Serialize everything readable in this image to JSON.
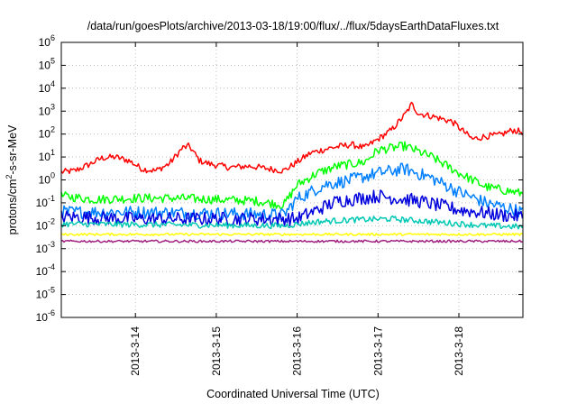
{
  "chart_data": {
    "type": "line",
    "title": "/data/run/goesPlots/archive/2013-03-18/19:00/flux/../flux/5daysEarthDataFluxes.txt",
    "xlabel": "Coordinated Universal Time (UTC)",
    "ylabel_parts": [
      "protons/cm",
      "2",
      "-s-sr-MeV"
    ],
    "y_scale": "log",
    "ylim": [
      1e-06,
      1000000.0
    ],
    "y_ticks": [
      {
        "base": "10",
        "exp": "6",
        "value": 1000000.0
      },
      {
        "base": "10",
        "exp": "5",
        "value": 100000.0
      },
      {
        "base": "10",
        "exp": "4",
        "value": 10000.0
      },
      {
        "base": "10",
        "exp": "3",
        "value": 1000.0
      },
      {
        "base": "10",
        "exp": "2",
        "value": 100.0
      },
      {
        "base": "10",
        "exp": "1",
        "value": 10.0
      },
      {
        "base": "10",
        "exp": "0",
        "value": 1.0
      },
      {
        "base": "10",
        "exp": "-1",
        "value": 0.1
      },
      {
        "base": "10",
        "exp": "-2",
        "value": 0.01
      },
      {
        "base": "10",
        "exp": "-3",
        "value": 0.001
      },
      {
        "base": "10",
        "exp": "-4",
        "value": 0.0001
      },
      {
        "base": "10",
        "exp": "-5",
        "value": 1e-05
      },
      {
        "base": "10",
        "exp": "-6",
        "value": 1e-06
      }
    ],
    "xlim": [
      "2013-03-13 02:00",
      "2013-03-18 19:00"
    ],
    "x_ticks": [
      {
        "label": "2013-3-14",
        "value": "2013-03-14 00:00"
      },
      {
        "label": "2013-3-15",
        "value": "2013-03-15 00:00"
      },
      {
        "label": "2013-3-16",
        "value": "2013-03-16 00:00"
      },
      {
        "label": "2013-3-17",
        "value": "2013-03-17 00:00"
      },
      {
        "label": "2013-3-18",
        "value": "2013-03-18 00:00"
      }
    ],
    "grid": true,
    "series": [
      {
        "color": "#ff0000",
        "noise": 0.14,
        "points": [
          [
            "2013-03-13 02:00",
            2.2
          ],
          [
            "2013-03-13 06:00",
            2.5
          ],
          [
            "2013-03-13 10:00",
            4.5
          ],
          [
            "2013-03-13 14:00",
            9
          ],
          [
            "2013-03-13 18:00",
            10
          ],
          [
            "2013-03-13 22:00",
            7
          ],
          [
            "2013-03-14 02:00",
            3
          ],
          [
            "2013-03-14 06:00",
            2.5
          ],
          [
            "2013-03-14 10:00",
            5
          ],
          [
            "2013-03-14 14:00",
            25
          ],
          [
            "2013-03-14 16:00",
            30
          ],
          [
            "2013-03-14 19:00",
            7
          ],
          [
            "2013-03-14 22:00",
            5
          ],
          [
            "2013-03-15 04:00",
            3.5
          ],
          [
            "2013-03-15 10:00",
            4
          ],
          [
            "2013-03-15 16:00",
            3
          ],
          [
            "2013-03-15 20:00",
            2.5
          ],
          [
            "2013-03-16 00:00",
            6
          ],
          [
            "2013-03-16 04:00",
            15
          ],
          [
            "2013-03-16 10:00",
            25
          ],
          [
            "2013-03-16 16:00",
            35
          ],
          [
            "2013-03-16 20:00",
            25
          ],
          [
            "2013-03-17 00:00",
            60
          ],
          [
            "2013-03-17 04:00",
            150
          ],
          [
            "2013-03-17 08:00",
            700
          ],
          [
            "2013-03-17 10:00",
            2000
          ],
          [
            "2013-03-17 12:00",
            800
          ],
          [
            "2013-03-17 16:00",
            600
          ],
          [
            "2013-03-17 22:00",
            350
          ],
          [
            "2013-03-18 04:00",
            60
          ],
          [
            "2013-03-18 08:00",
            80
          ],
          [
            "2013-03-18 12:00",
            90
          ],
          [
            "2013-03-18 16:00",
            150
          ],
          [
            "2013-03-18 19:00",
            120
          ]
        ]
      },
      {
        "color": "#00ff00",
        "noise": 0.2,
        "points": [
          [
            "2013-03-13 02:00",
            0.2
          ],
          [
            "2013-03-13 12:00",
            0.14
          ],
          [
            "2013-03-14 00:00",
            0.16
          ],
          [
            "2013-03-14 12:00",
            0.16
          ],
          [
            "2013-03-15 00:00",
            0.14
          ],
          [
            "2013-03-15 12:00",
            0.12
          ],
          [
            "2013-03-15 20:00",
            0.08
          ],
          [
            "2013-03-16 00:00",
            0.6
          ],
          [
            "2013-03-16 06:00",
            2
          ],
          [
            "2013-03-16 12:00",
            4
          ],
          [
            "2013-03-16 20:00",
            6
          ],
          [
            "2013-03-17 00:00",
            20
          ],
          [
            "2013-03-17 08:00",
            30
          ],
          [
            "2013-03-17 16:00",
            10
          ],
          [
            "2013-03-18 00:00",
            2
          ],
          [
            "2013-03-18 08:00",
            0.5
          ],
          [
            "2013-03-18 19:00",
            0.25
          ]
        ]
      },
      {
        "color": "#0080ff",
        "noise": 0.28,
        "points": [
          [
            "2013-03-13 02:00",
            0.04
          ],
          [
            "2013-03-14 00:00",
            0.04
          ],
          [
            "2013-03-15 00:00",
            0.035
          ],
          [
            "2013-03-15 20:00",
            0.03
          ],
          [
            "2013-03-16 00:00",
            0.15
          ],
          [
            "2013-03-16 08:00",
            0.6
          ],
          [
            "2013-03-16 16:00",
            1
          ],
          [
            "2013-03-17 00:00",
            2
          ],
          [
            "2013-03-17 08:00",
            3
          ],
          [
            "2013-03-17 16:00",
            1.2
          ],
          [
            "2013-03-18 00:00",
            0.3
          ],
          [
            "2013-03-18 08:00",
            0.1
          ],
          [
            "2013-03-18 19:00",
            0.04
          ]
        ]
      },
      {
        "color": "#0000dd",
        "noise": 0.3,
        "points": [
          [
            "2013-03-13 02:00",
            0.025
          ],
          [
            "2013-03-14 00:00",
            0.02
          ],
          [
            "2013-03-15 00:00",
            0.02
          ],
          [
            "2013-03-15 20:00",
            0.02
          ],
          [
            "2013-03-16 00:00",
            0.02
          ],
          [
            "2013-03-16 06:00",
            0.05
          ],
          [
            "2013-03-16 12:00",
            0.12
          ],
          [
            "2013-03-17 00:00",
            0.2
          ],
          [
            "2013-03-17 12:00",
            0.12
          ],
          [
            "2013-03-18 00:00",
            0.05
          ],
          [
            "2013-03-18 12:00",
            0.03
          ],
          [
            "2013-03-18 19:00",
            0.025
          ]
        ]
      },
      {
        "color": "#00c8b4",
        "noise": 0.13,
        "points": [
          [
            "2013-03-13 02:00",
            0.012
          ],
          [
            "2013-03-15 20:00",
            0.01
          ],
          [
            "2013-03-16 06:00",
            0.015
          ],
          [
            "2013-03-16 16:00",
            0.018
          ],
          [
            "2013-03-17 04:00",
            0.02
          ],
          [
            "2013-03-17 16:00",
            0.015
          ],
          [
            "2013-03-18 08:00",
            0.01
          ],
          [
            "2013-03-18 19:00",
            0.009
          ]
        ]
      },
      {
        "color": "#ffff00",
        "noise": 0.05,
        "points": [
          [
            "2013-03-13 02:00",
            0.0042
          ],
          [
            "2013-03-18 19:00",
            0.0042
          ]
        ]
      },
      {
        "color": "#a02080",
        "noise": 0.05,
        "points": [
          [
            "2013-03-13 02:00",
            0.0021
          ],
          [
            "2013-03-18 19:00",
            0.0021
          ]
        ]
      }
    ]
  }
}
